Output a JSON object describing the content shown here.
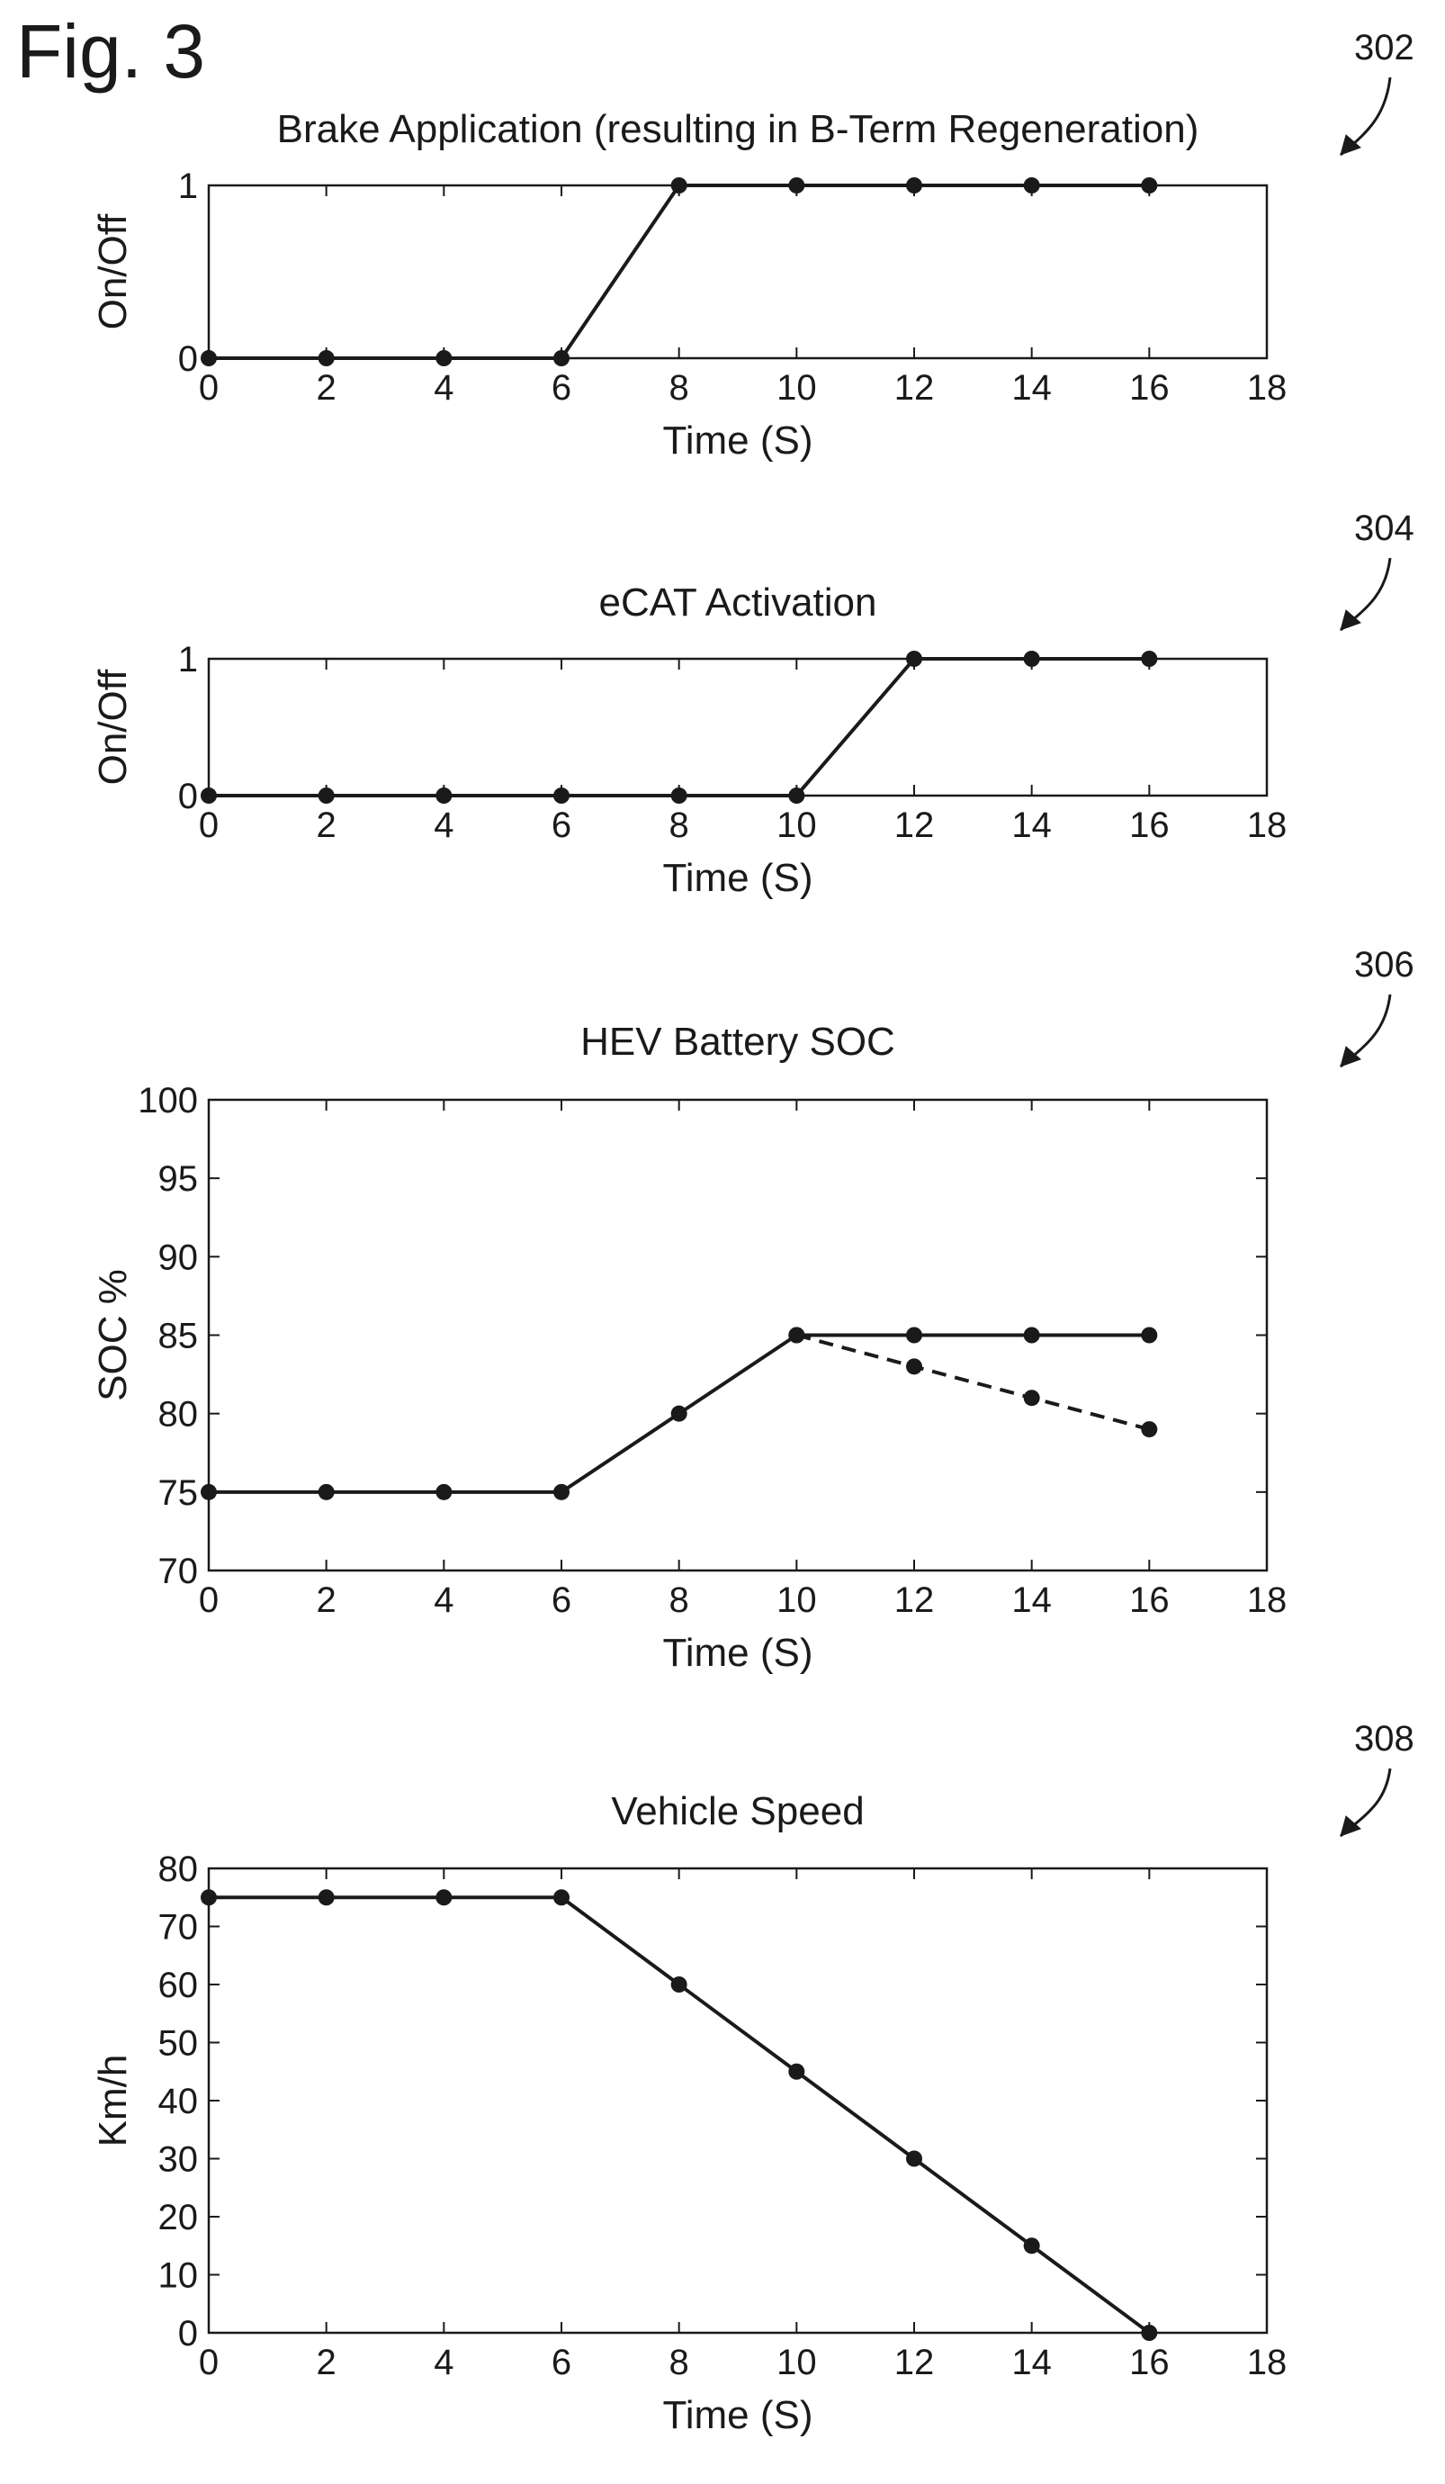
{
  "figure_label": "Fig. 3",
  "chart_data": [
    {
      "ref": "302",
      "type": "line",
      "title": "Brake Application (resulting in B-Term Regeneration)",
      "xlabel": "Time (S)",
      "ylabel": "On/Off",
      "xlim": [
        0,
        18
      ],
      "ylim": [
        0,
        1
      ],
      "xticks": [
        "0",
        "2",
        "4",
        "6",
        "8",
        "10",
        "12",
        "14",
        "16",
        "18"
      ],
      "yticks": [
        "0",
        "1"
      ],
      "grid": false,
      "series": [
        {
          "x": [
            0,
            2,
            4,
            6,
            8,
            10,
            12,
            14,
            16
          ],
          "y": [
            0,
            0,
            0,
            0,
            1,
            1,
            1,
            1,
            1
          ],
          "style": "solid"
        }
      ]
    },
    {
      "ref": "304",
      "type": "line",
      "title": "eCAT Activation",
      "xlabel": "Time (S)",
      "ylabel": "On/Off",
      "xlim": [
        0,
        18
      ],
      "ylim": [
        0,
        1
      ],
      "xticks": [
        "0",
        "2",
        "4",
        "6",
        "8",
        "10",
        "12",
        "14",
        "16",
        "18"
      ],
      "yticks": [
        "0",
        "1"
      ],
      "grid": false,
      "series": [
        {
          "x": [
            0,
            2,
            4,
            6,
            8,
            10,
            12,
            14,
            16
          ],
          "y": [
            0,
            0,
            0,
            0,
            0,
            0,
            1,
            1,
            1
          ],
          "style": "solid"
        }
      ]
    },
    {
      "ref": "306",
      "type": "line",
      "title": "HEV Battery SOC",
      "xlabel": "Time (S)",
      "ylabel": "SOC %",
      "xlim": [
        0,
        18
      ],
      "ylim": [
        70,
        100
      ],
      "xticks": [
        "0",
        "2",
        "4",
        "6",
        "8",
        "10",
        "12",
        "14",
        "16",
        "18"
      ],
      "yticks": [
        "70",
        "75",
        "80",
        "85",
        "90",
        "95",
        "100"
      ],
      "grid": false,
      "series": [
        {
          "x": [
            0,
            2,
            4,
            6,
            8,
            10,
            12,
            14,
            16
          ],
          "y": [
            75,
            75,
            75,
            75,
            80,
            85,
            85,
            85,
            85
          ],
          "style": "solid"
        },
        {
          "x": [
            10,
            12,
            14,
            16
          ],
          "y": [
            85,
            83,
            81,
            79
          ],
          "style": "dashed"
        }
      ]
    },
    {
      "ref": "308",
      "type": "line",
      "title": "Vehicle Speed",
      "xlabel": "Time (S)",
      "ylabel": "Km/h",
      "xlim": [
        0,
        18
      ],
      "ylim": [
        0,
        80
      ],
      "xticks": [
        "0",
        "2",
        "4",
        "6",
        "8",
        "10",
        "12",
        "14",
        "16",
        "18"
      ],
      "yticks": [
        "0",
        "10",
        "20",
        "30",
        "40",
        "50",
        "60",
        "70",
        "80"
      ],
      "grid": false,
      "series": [
        {
          "x": [
            0,
            2,
            4,
            6,
            8,
            10,
            12,
            14,
            16
          ],
          "y": [
            75,
            75,
            75,
            75,
            60,
            45,
            30,
            15,
            0
          ],
          "style": "solid"
        }
      ]
    }
  ],
  "colors": {
    "ink": "#1a1a1a",
    "background": "#ffffff"
  }
}
